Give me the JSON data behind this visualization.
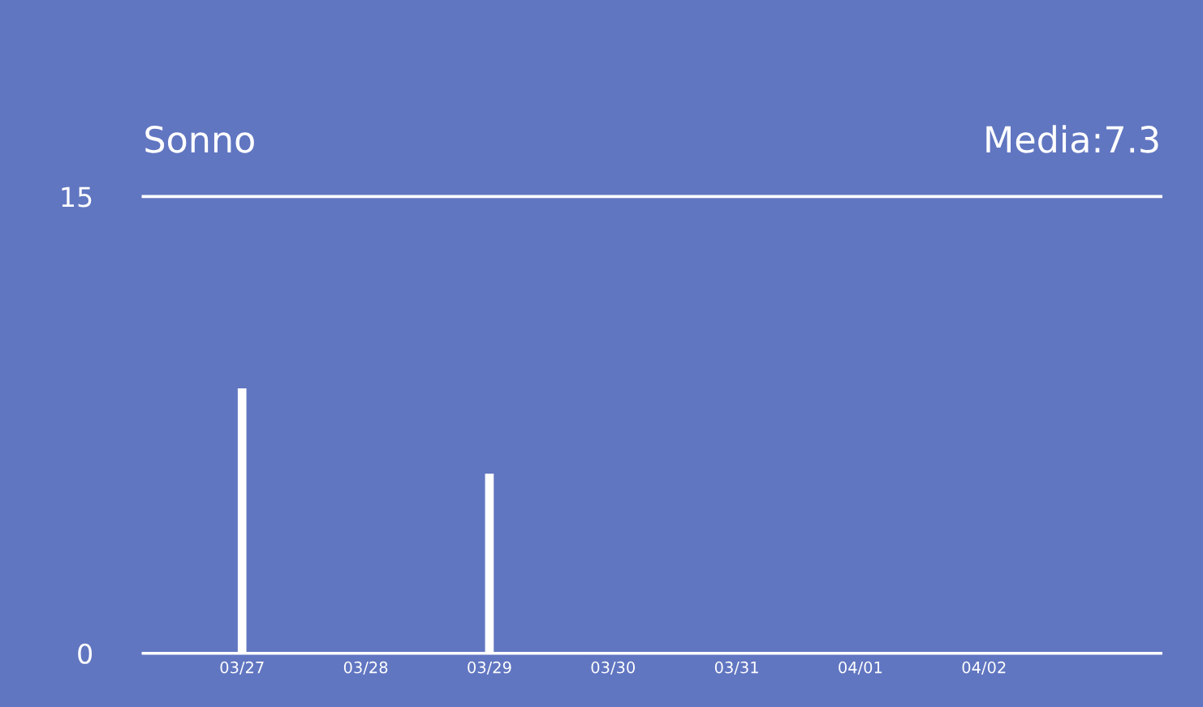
{
  "chart_data": {
    "type": "bar",
    "title": "Sonno",
    "annotations": [
      "Media:7.3"
    ],
    "categories": [
      "03/27",
      "03/28",
      "03/29",
      "03/30",
      "03/31",
      "04/01",
      "04/02"
    ],
    "values": [
      8.7,
      null,
      5.9,
      null,
      null,
      null,
      null
    ],
    "color": "#ffffff",
    "ylim": [
      0,
      15
    ],
    "yticks": [
      0,
      15
    ]
  }
}
